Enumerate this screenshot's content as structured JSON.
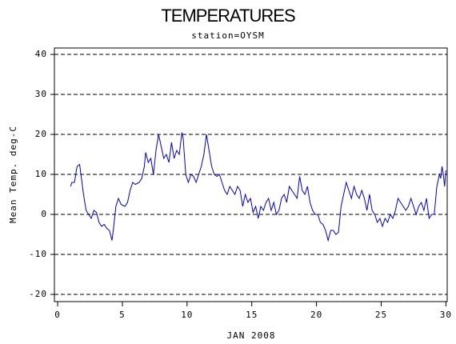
{
  "chart_data": {
    "type": "line",
    "title": "TEMPERATURES",
    "subtitle": "station=OYSM",
    "x_label": "JAN 2008",
    "y_label": "Mean Temp. deg-C",
    "color": "#0000cc",
    "x": [
      1.0,
      1.1,
      1.3,
      1.5,
      1.7,
      1.8,
      2.0,
      2.2,
      2.4,
      2.6,
      2.8,
      3.0,
      3.2,
      3.4,
      3.6,
      3.8,
      4.0,
      4.2,
      4.3,
      4.5,
      4.7,
      4.9,
      5.2,
      5.4,
      5.6,
      5.8,
      6.0,
      6.3,
      6.5,
      6.7,
      6.8,
      7.0,
      7.2,
      7.4,
      7.6,
      7.8,
      8.0,
      8.2,
      8.4,
      8.6,
      8.8,
      9.0,
      9.2,
      9.4,
      9.6,
      9.7,
      9.9,
      10.1,
      10.3,
      10.5,
      10.7,
      10.9,
      11.1,
      11.3,
      11.5,
      11.7,
      11.9,
      12.1,
      12.3,
      12.5,
      12.7,
      12.9,
      13.1,
      13.3,
      13.5,
      13.7,
      13.9,
      14.1,
      14.3,
      14.5,
      14.7,
      14.9,
      15.1,
      15.3,
      15.5,
      15.7,
      15.9,
      16.1,
      16.3,
      16.5,
      16.7,
      16.9,
      17.1,
      17.3,
      17.5,
      17.7,
      17.9,
      18.1,
      18.3,
      18.5,
      18.7,
      18.9,
      19.1,
      19.3,
      19.5,
      19.7,
      19.9,
      20.1,
      20.3,
      20.5,
      20.7,
      20.9,
      21.1,
      21.3,
      21.5,
      21.7,
      21.9,
      22.1,
      22.3,
      22.5,
      22.7,
      22.9,
      23.1,
      23.3,
      23.5,
      23.7,
      23.9,
      24.1,
      24.3,
      24.5,
      24.7,
      24.9,
      25.1,
      25.3,
      25.5,
      25.7,
      25.9,
      26.1,
      26.3,
      26.5,
      26.7,
      26.9,
      27.1,
      27.3,
      27.5,
      27.7,
      27.9,
      28.1,
      28.3,
      28.5,
      28.7,
      28.9,
      29.1,
      29.3,
      29.5,
      29.6,
      29.7,
      29.8,
      29.9,
      30.0
    ],
    "values": [
      7,
      8,
      8,
      12,
      12.5,
      10,
      5,
      1,
      0,
      -1,
      1,
      0.5,
      -2,
      -3,
      -2.5,
      -3.5,
      -4,
      -6.5,
      -4,
      2,
      4,
      2.5,
      2,
      3,
      6,
      8,
      7.5,
      8,
      9,
      12,
      15.5,
      13,
      14,
      10,
      16,
      20,
      17,
      14,
      15,
      13,
      18,
      14,
      16,
      15,
      20.5,
      19,
      10,
      8,
      10,
      9.5,
      8,
      10,
      12,
      15,
      20,
      16,
      12,
      10,
      9.5,
      10,
      8,
      6,
      5,
      7,
      6,
      5,
      7,
      6,
      2,
      5,
      3,
      4,
      0.5,
      2,
      -1,
      2,
      1,
      3,
      4,
      1,
      3,
      0,
      1,
      4,
      5,
      3,
      7,
      6,
      5,
      4,
      9.5,
      6,
      5,
      7,
      3,
      1,
      0,
      0,
      -2,
      -2.5,
      -4,
      -6.5,
      -4,
      -4,
      -5,
      -4.5,
      2,
      5,
      8,
      6,
      4,
      7,
      5,
      4,
      6,
      4,
      1,
      5,
      1,
      0,
      -2,
      -1,
      -3,
      -1,
      -2,
      0,
      -1,
      1,
      4,
      3,
      2,
      1,
      2,
      4,
      2,
      0,
      2,
      3,
      1,
      4,
      -1,
      0,
      0,
      7,
      10,
      9,
      12,
      10,
      7,
      11
    ],
    "xlim": [
      -0.25,
      30.1
    ],
    "xticks": [
      0,
      5,
      10,
      15,
      20,
      25,
      30
    ],
    "ylim": [
      -21.8,
      41.6
    ],
    "yticks": [
      40,
      30,
      20,
      10,
      0,
      -10,
      -20
    ],
    "grid": true
  }
}
